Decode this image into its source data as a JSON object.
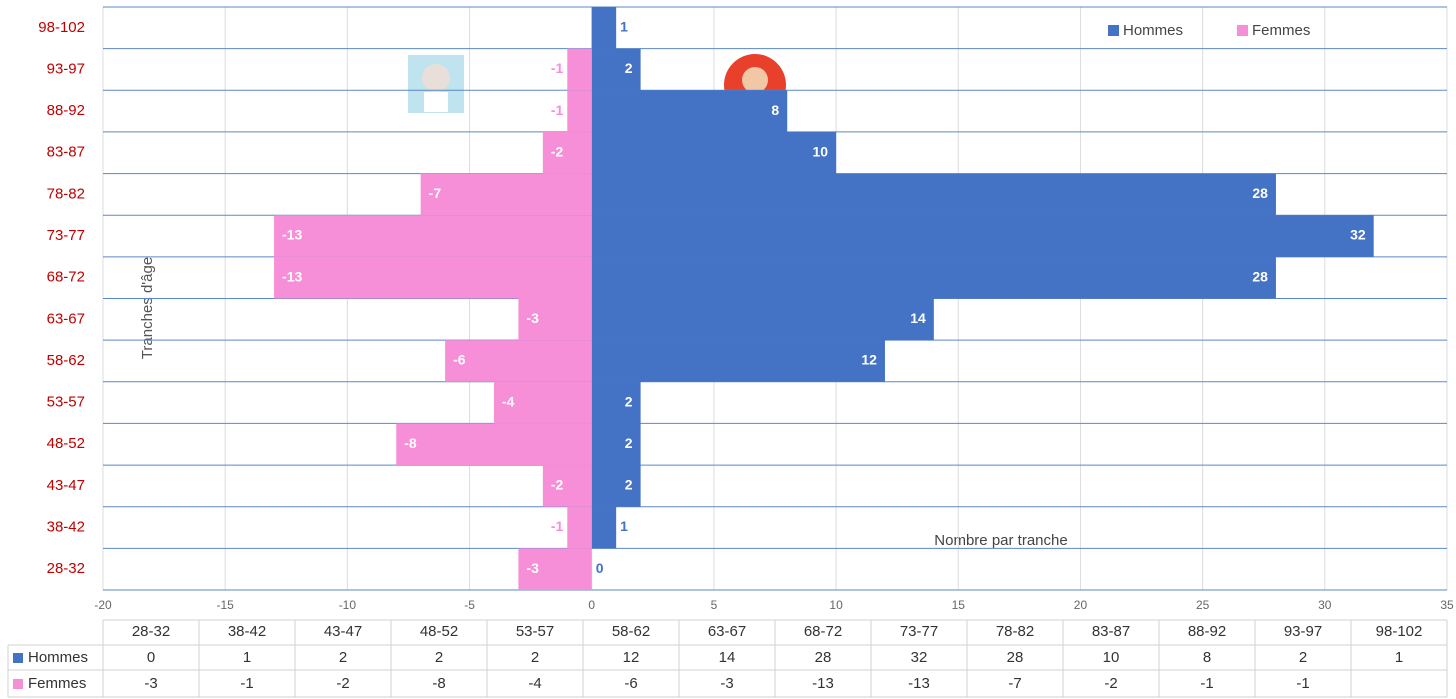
{
  "chart_data": {
    "type": "bar",
    "orientation": "horizontal",
    "stacked": false,
    "x_label": "Nombre par tranche",
    "y_label": "Tranches d'âge",
    "categories": [
      "28-32",
      "38-42",
      "43-47",
      "48-52",
      "53-57",
      "58-62",
      "63-67",
      "68-72",
      "73-77",
      "78-82",
      "83-87",
      "88-92",
      "93-97",
      "98-102"
    ],
    "series": [
      {
        "name": "Hommes",
        "color": "#4472c4",
        "values": [
          0,
          1,
          2,
          2,
          2,
          12,
          14,
          28,
          32,
          28,
          10,
          8,
          2,
          1
        ]
      },
      {
        "name": "Femmes",
        "color": "#f78ed8",
        "values": [
          -3,
          -1,
          -2,
          -8,
          -4,
          -6,
          -3,
          -13,
          -13,
          -7,
          -2,
          -1,
          -1,
          null
        ]
      }
    ],
    "xlim": [
      -20,
      35
    ],
    "xticks": [
      -20,
      -15,
      -10,
      -5,
      0,
      5,
      10,
      15,
      20,
      25,
      30,
      35
    ],
    "grid": true,
    "legend": "top-right",
    "data_table": true
  }
}
